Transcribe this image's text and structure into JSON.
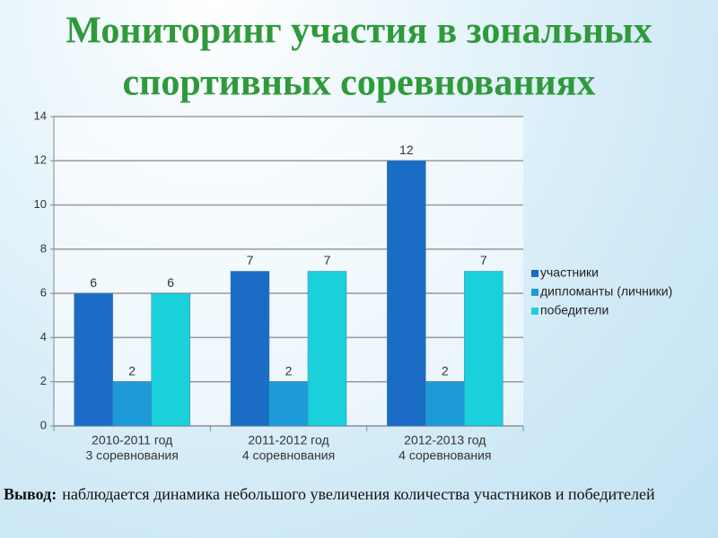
{
  "chart_data": {
    "type": "bar",
    "title": [
      "Мониторинг участия в зональных",
      "спортивных соревнованиях"
    ],
    "categories": [
      [
        "2010-2011 год",
        "3 соревнования"
      ],
      [
        "2011-2012 год",
        "4 соревнования"
      ],
      [
        "2012-2013 год",
        "4 соревнования"
      ]
    ],
    "series": [
      {
        "name": "участники",
        "color": "#1a6cc4",
        "values": [
          6,
          7,
          12
        ]
      },
      {
        "name": "дипломанты (личники)",
        "color": "#1c9bd8",
        "values": [
          2,
          2,
          2
        ]
      },
      {
        "name": "победители",
        "color": "#1ad0da",
        "values": [
          6,
          7,
          7
        ]
      }
    ],
    "ylim": [
      0,
      14
    ],
    "yticks": [
      0,
      2,
      4,
      6,
      8,
      10,
      12,
      14
    ],
    "grid": true,
    "legend": "right"
  },
  "conclusion": {
    "label": "Вывод:",
    "text": "наблюдается динамика небольшого увеличения количества участников и победителей"
  }
}
